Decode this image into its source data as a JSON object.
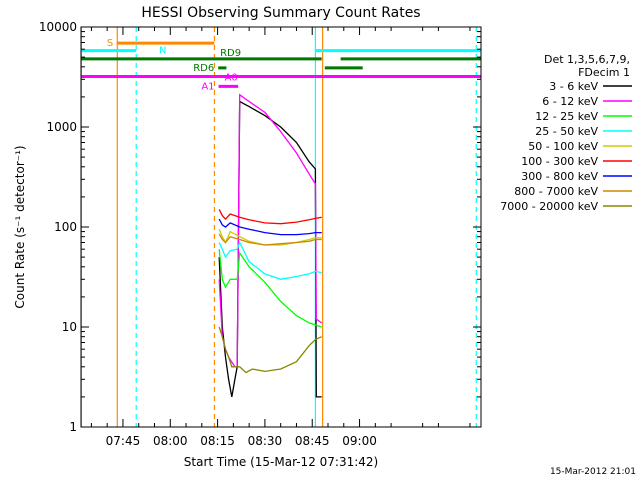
{
  "chart_data": {
    "type": "line",
    "title": "HESSI Observing Summary Count Rates",
    "xlabel": "Start Time (15-Mar-12 07:31:42)",
    "ylabel": "Count Rate (s⁻¹ detector⁻¹)",
    "y_scale": "log",
    "ylim": [
      1,
      10000
    ],
    "xlim_minutes_of_day": [
      451.7,
      578.5
    ],
    "x_ticks": [
      {
        "label": "07:45",
        "value": 465
      },
      {
        "label": "08:00",
        "value": 480
      },
      {
        "label": "08:15",
        "value": 495
      },
      {
        "label": "08:30",
        "value": 510
      },
      {
        "label": "08:45",
        "value": 525
      },
      {
        "label": "09:00",
        "value": 540
      }
    ],
    "y_ticks": [
      {
        "label": "1",
        "value": 1
      },
      {
        "label": "10",
        "value": 10
      },
      {
        "label": "100",
        "value": 100
      },
      {
        "label": "1000",
        "value": 1000
      },
      {
        "label": "10000",
        "value": 10000
      }
    ],
    "legend": {
      "placement": "right",
      "header": [
        "Det 1,3,5,6,7,9,",
        "FDecim 1"
      ]
    },
    "series": [
      {
        "name": "3 - 6 keV",
        "color": "#000000",
        "points": [
          [
            495.5,
            50
          ],
          [
            496.5,
            10
          ],
          [
            497.5,
            5
          ],
          [
            498.5,
            3
          ],
          [
            499.5,
            2
          ],
          [
            500.5,
            3
          ],
          [
            501.2,
            4
          ],
          [
            502,
            1800
          ],
          [
            505,
            1600
          ],
          [
            510,
            1300
          ],
          [
            515,
            1000
          ],
          [
            520,
            700
          ],
          [
            524,
            450
          ],
          [
            526,
            380
          ],
          [
            526.3,
            2
          ],
          [
            528,
            2
          ]
        ]
      },
      {
        "name": "6 - 12 keV",
        "color": "#ff00ff",
        "points": [
          [
            495.5,
            30
          ],
          [
            496.5,
            8
          ],
          [
            497.5,
            6
          ],
          [
            498.5,
            5
          ],
          [
            500.5,
            4
          ],
          [
            501.2,
            4
          ],
          [
            502,
            2100
          ],
          [
            505,
            1800
          ],
          [
            510,
            1400
          ],
          [
            515,
            900
          ],
          [
            520,
            550
          ],
          [
            524,
            340
          ],
          [
            526,
            270
          ],
          [
            526.3,
            12
          ],
          [
            528,
            11
          ]
        ]
      },
      {
        "name": "12 - 25 keV",
        "color": "#00ff00",
        "points": [
          [
            495.5,
            60
          ],
          [
            496.5,
            30
          ],
          [
            497.5,
            25
          ],
          [
            499,
            30
          ],
          [
            501.2,
            30
          ],
          [
            502,
            55
          ],
          [
            505,
            40
          ],
          [
            510,
            28
          ],
          [
            515,
            18
          ],
          [
            520,
            13
          ],
          [
            524,
            11
          ],
          [
            526,
            10.5
          ],
          [
            528,
            10
          ]
        ]
      },
      {
        "name": "25 - 50 keV",
        "color": "#00ffff",
        "points": [
          [
            495.5,
            70
          ],
          [
            496.5,
            60
          ],
          [
            497.5,
            50
          ],
          [
            499,
            58
          ],
          [
            501.2,
            60
          ],
          [
            502,
            70
          ],
          [
            505,
            45
          ],
          [
            510,
            34
          ],
          [
            515,
            30
          ],
          [
            520,
            32
          ],
          [
            524,
            34
          ],
          [
            526,
            36
          ],
          [
            528,
            35
          ]
        ]
      },
      {
        "name": "50 - 100 keV",
        "color": "#cccc00",
        "points": [
          [
            495.5,
            95
          ],
          [
            496.5,
            80
          ],
          [
            497.5,
            70
          ],
          [
            499,
            90
          ],
          [
            502,
            80
          ],
          [
            505,
            72
          ],
          [
            510,
            66
          ],
          [
            515,
            66
          ],
          [
            520,
            70
          ],
          [
            524,
            75
          ],
          [
            526,
            78
          ],
          [
            528,
            78
          ]
        ]
      },
      {
        "name": "100 - 300 keV",
        "color": "#ff0000",
        "points": [
          [
            495.5,
            150
          ],
          [
            496.5,
            130
          ],
          [
            497.5,
            120
          ],
          [
            499,
            135
          ],
          [
            502,
            125
          ],
          [
            505,
            118
          ],
          [
            510,
            110
          ],
          [
            515,
            108
          ],
          [
            520,
            112
          ],
          [
            524,
            118
          ],
          [
            526,
            122
          ],
          [
            528,
            125
          ]
        ]
      },
      {
        "name": "300 - 800 keV",
        "color": "#0000ff",
        "points": [
          [
            495.5,
            120
          ],
          [
            496.5,
            105
          ],
          [
            497.5,
            100
          ],
          [
            499,
            110
          ],
          [
            502,
            100
          ],
          [
            505,
            95
          ],
          [
            510,
            88
          ],
          [
            515,
            84
          ],
          [
            520,
            84
          ],
          [
            524,
            86
          ],
          [
            526,
            88
          ],
          [
            528,
            88
          ]
        ]
      },
      {
        "name": "800 - 7000 keV",
        "color": "#cc8800",
        "points": [
          [
            495.5,
            85
          ],
          [
            496.5,
            75
          ],
          [
            497.5,
            70
          ],
          [
            499,
            80
          ],
          [
            502,
            75
          ],
          [
            505,
            70
          ],
          [
            510,
            66
          ],
          [
            515,
            68
          ],
          [
            520,
            70
          ],
          [
            524,
            72
          ],
          [
            526,
            75
          ],
          [
            528,
            75
          ]
        ]
      },
      {
        "name": "7000 - 20000 keV",
        "color": "#888800",
        "points": [
          [
            495.5,
            10
          ],
          [
            496.5,
            8
          ],
          [
            497.5,
            6
          ],
          [
            498.5,
            5
          ],
          [
            499.5,
            4
          ],
          [
            501.2,
            4
          ],
          [
            502,
            4
          ],
          [
            504,
            3.5
          ],
          [
            506,
            3.8
          ],
          [
            510,
            3.6
          ],
          [
            515,
            3.8
          ],
          [
            520,
            4.5
          ],
          [
            524,
            6.5
          ],
          [
            526,
            7.5
          ],
          [
            528,
            8
          ]
        ]
      }
    ],
    "annotations": {
      "bars": [
        {
          "label": "S",
          "color": "#ff8800",
          "x_start": 463.2,
          "x_end": 494,
          "y": 6900
        },
        {
          "label": "N",
          "color": "#00ffff",
          "x_start": 451.7,
          "x_end": 469.2,
          "y": 5800
        },
        {
          "label": "",
          "color": "#00ffff",
          "x_start": 526,
          "x_end": 578.5,
          "y": 5800
        },
        {
          "label": "RD9",
          "color": "#007700",
          "x_start": 451.7,
          "x_end": 528,
          "y": 4800
        },
        {
          "label": "",
          "color": "#007700",
          "x_start": 534,
          "x_end": 578.5,
          "y": 4800
        },
        {
          "label": "RD6",
          "color": "#007700",
          "x_start": 495.2,
          "x_end": 497.8,
          "y": 3900
        },
        {
          "label": "",
          "color": "#007700",
          "x_start": 529,
          "x_end": 541,
          "y": 3900
        },
        {
          "label": "A0",
          "color": "#ff00ff",
          "x_start": 451.7,
          "x_end": 578.5,
          "y": 3200
        },
        {
          "label": "A1",
          "color": "#ff00ff",
          "x_start": 495.3,
          "x_end": 501.5,
          "y": 2550
        }
      ],
      "vlines": [
        {
          "x": 463.2,
          "color": "#ff8800",
          "dash": false
        },
        {
          "x": 469.2,
          "color": "#00ffff",
          "dash": true
        },
        {
          "x": 494.0,
          "color": "#ff8800",
          "dash": true
        },
        {
          "x": 526.0,
          "color": "#00ffff",
          "dash": false
        },
        {
          "x": 528.3,
          "color": "#ff8800",
          "dash": false
        },
        {
          "x": 577.0,
          "color": "#00ffff",
          "dash": true
        },
        {
          "x": 451.8,
          "color": "#00ffff",
          "dash": false
        }
      ]
    }
  },
  "footer": {
    "timestamp": "15-Mar-2012 21:01"
  }
}
